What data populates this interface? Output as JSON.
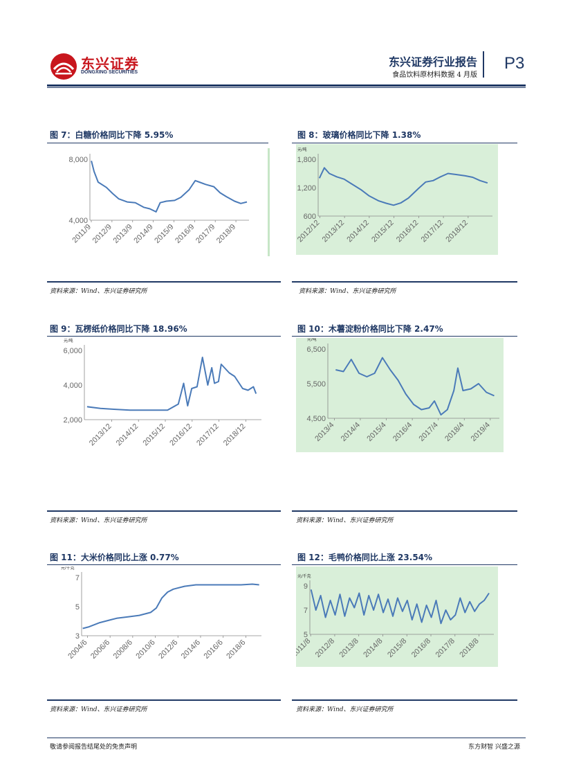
{
  "header": {
    "logo_cn": "东兴证券",
    "logo_en": "DONGXING SECURITIES",
    "title": "东兴证券行业报告",
    "subtitle": "食品饮料原材料数据 4 月版",
    "page": "P3"
  },
  "figures": [
    {
      "caption": "图 7：白糖价格同比下降 5.95%",
      "source": "资料来源：Wind、东兴证券研究所"
    },
    {
      "caption": "图 8：玻璃价格同比下降 1.38%",
      "source": "资料来源：Wind、东兴证券研究所"
    },
    {
      "caption": "图 9：瓦楞纸价格同比下降 18.96%",
      "source": "资料来源：Wind、东兴证券研究所"
    },
    {
      "caption": "图 10：木薯淀粉价格同比下降 2.47%",
      "source": "资料来源：Wind、东兴证券研究所"
    },
    {
      "caption": "图 11：大米价格同比上涨 0.77%",
      "source": "资料来源：Wind、东兴证券研究所"
    },
    {
      "caption": "图 12：毛鸭价格同比上涨 23.54%",
      "source": "资料来源：Wind、东兴证券研究所"
    }
  ],
  "chart_data": [
    {
      "type": "line",
      "unit": "",
      "x_ticks": [
        "2011/9",
        "2012/9",
        "2013/9",
        "2014/9",
        "2015/9",
        "2016/9",
        "2017/9",
        "2018/9"
      ],
      "y_ticks": [
        "4,000",
        "8,000"
      ],
      "ylim": [
        4000,
        8000
      ],
      "xlim": [
        2011.6,
        2019.3
      ],
      "series_color": "#4a7ab8",
      "background": "#ffffff",
      "x": [
        2011.67,
        2011.8,
        2012.0,
        2012.4,
        2012.7,
        2013.0,
        2013.4,
        2013.8,
        2014.2,
        2014.5,
        2014.8,
        2015.0,
        2015.3,
        2015.7,
        2016.0,
        2016.4,
        2016.7,
        2016.9,
        2017.2,
        2017.6,
        2017.9,
        2018.2,
        2018.6,
        2018.9,
        2019.2
      ],
      "values": [
        7900,
        7200,
        6500,
        6150,
        5750,
        5400,
        5200,
        5150,
        4850,
        4750,
        4550,
        5150,
        5250,
        5300,
        5500,
        6000,
        6600,
        6500,
        6350,
        6200,
        5800,
        5550,
        5250,
        5100,
        5200
      ]
    },
    {
      "type": "line",
      "unit": "元/吨",
      "x_ticks": [
        "2012/12",
        "2013/12",
        "2014/12",
        "2015/12",
        "2016/12",
        "2017/12",
        "2018/12"
      ],
      "y_ticks": [
        "600",
        "1,200",
        "1,800"
      ],
      "ylim": [
        600,
        1800
      ],
      "xlim": [
        2012.85,
        2019.9
      ],
      "series_color": "#4a7ab8",
      "background": "#d9efd9",
      "x": [
        2012.9,
        2013.1,
        2013.3,
        2013.6,
        2013.9,
        2014.2,
        2014.6,
        2014.9,
        2015.3,
        2015.6,
        2015.9,
        2016.2,
        2016.5,
        2016.9,
        2017.2,
        2017.5,
        2017.8,
        2018.1,
        2018.4,
        2018.8,
        2019.1,
        2019.4,
        2019.7
      ],
      "values": [
        1400,
        1620,
        1500,
        1430,
        1380,
        1280,
        1150,
        1030,
        920,
        870,
        830,
        880,
        980,
        1180,
        1320,
        1350,
        1430,
        1500,
        1480,
        1450,
        1420,
        1350,
        1300
      ]
    },
    {
      "type": "line",
      "unit": "元/吨",
      "x_ticks": [
        "2013/12",
        "2014/12",
        "2015/12",
        "2016/12",
        "2017/12",
        "2018/12"
      ],
      "y_ticks": [
        "2,000",
        "4,000",
        "6,000"
      ],
      "ylim": [
        2000,
        6000
      ],
      "xlim": [
        2012.9,
        2019.5
      ],
      "series_color": "#4a7ab8",
      "background": "#ffffff",
      "x": [
        2013.0,
        2013.5,
        2014.0,
        2014.6,
        2015.0,
        2015.6,
        2016.0,
        2016.4,
        2016.6,
        2016.75,
        2016.9,
        2017.1,
        2017.3,
        2017.5,
        2017.65,
        2017.75,
        2017.9,
        2018.0,
        2018.3,
        2018.5,
        2018.8,
        2019.0,
        2019.2,
        2019.3
      ],
      "values": [
        2750,
        2650,
        2600,
        2550,
        2550,
        2550,
        2550,
        2900,
        4100,
        2800,
        3800,
        3900,
        5600,
        4000,
        5000,
        4100,
        4200,
        5200,
        4700,
        4500,
        3800,
        3700,
        3900,
        3500
      ]
    },
    {
      "type": "line",
      "unit": "元/吨",
      "x_ticks": [
        "2013/4",
        "2014/4",
        "2015/4",
        "2016/4",
        "2017/4",
        "2018/4",
        "2019/4"
      ],
      "y_ticks": [
        "4,500",
        "5,500",
        "6,500"
      ],
      "ylim": [
        4500,
        6500
      ],
      "xlim": [
        2013.0,
        2019.6
      ],
      "series_color": "#4a7ab8",
      "background": "#d9efd9",
      "x": [
        2013.3,
        2013.6,
        2013.9,
        2014.2,
        2014.5,
        2014.8,
        2015.1,
        2015.4,
        2015.7,
        2016.0,
        2016.3,
        2016.6,
        2016.9,
        2017.1,
        2017.35,
        2017.6,
        2017.85,
        2018.0,
        2018.2,
        2018.5,
        2018.8,
        2019.1,
        2019.4
      ],
      "values": [
        5900,
        5850,
        6200,
        5800,
        5700,
        5800,
        6250,
        5900,
        5600,
        5200,
        4900,
        4750,
        4800,
        5000,
        4600,
        4750,
        5300,
        5950,
        5300,
        5350,
        5500,
        5250,
        5150
      ]
    },
    {
      "type": "line",
      "unit": "元/千克",
      "x_ticks": [
        "2004/6",
        "2006/6",
        "2008/6",
        "2010/6",
        "2012/6",
        "2014/6",
        "2016/6",
        "2018/6"
      ],
      "y_ticks": [
        "3",
        "5",
        "7"
      ],
      "ylim": [
        3,
        7
      ],
      "xlim": [
        2003.9,
        2019.8
      ],
      "series_color": "#4a7ab8",
      "background": "#ffffff",
      "x": [
        2004.0,
        2004.5,
        2005.5,
        2006.5,
        2007.0,
        2008.0,
        2009.0,
        2010.0,
        2010.5,
        2011.0,
        2011.5,
        2012.0,
        2013.0,
        2014.0,
        2015.0,
        2016.0,
        2017.0,
        2018.0,
        2019.0,
        2019.6
      ],
      "values": [
        3.5,
        3.6,
        3.9,
        4.1,
        4.2,
        4.3,
        4.4,
        4.6,
        4.9,
        5.6,
        6.0,
        6.2,
        6.4,
        6.5,
        6.5,
        6.5,
        6.5,
        6.5,
        6.55,
        6.5
      ]
    },
    {
      "type": "line",
      "unit": "元/千克",
      "x_ticks": [
        "2011/8",
        "2012/8",
        "2013/8",
        "2014/8",
        "2015/8",
        "2016/8",
        "2017/8",
        "2018/8"
      ],
      "y_ticks": [
        "5",
        "7",
        "9"
      ],
      "ylim": [
        5,
        9
      ],
      "xlim": [
        2011.55,
        2019.2
      ],
      "series_color": "#4a7ab8",
      "background": "#d9efd9",
      "x": [
        2011.6,
        2011.8,
        2012.0,
        2012.2,
        2012.4,
        2012.6,
        2012.8,
        2013.0,
        2013.2,
        2013.4,
        2013.6,
        2013.8,
        2014.0,
        2014.2,
        2014.4,
        2014.6,
        2014.8,
        2015.0,
        2015.2,
        2015.4,
        2015.6,
        2015.8,
        2016.0,
        2016.2,
        2016.4,
        2016.6,
        2016.8,
        2017.0,
        2017.2,
        2017.4,
        2017.6,
        2017.8,
        2018.0,
        2018.2,
        2018.4,
        2018.6,
        2018.8,
        2019.0
      ],
      "values": [
        8.7,
        7.0,
        8.2,
        6.4,
        7.8,
        6.6,
        8.3,
        6.5,
        8.0,
        7.2,
        8.4,
        6.6,
        8.2,
        7.0,
        8.3,
        6.8,
        7.9,
        6.5,
        8.0,
        6.9,
        7.8,
        6.2,
        7.5,
        6.0,
        7.4,
        6.4,
        7.8,
        5.9,
        7.0,
        6.2,
        6.6,
        8.0,
        6.8,
        7.7,
        6.9,
        7.5,
        7.8,
        8.4
      ]
    }
  ]
}
